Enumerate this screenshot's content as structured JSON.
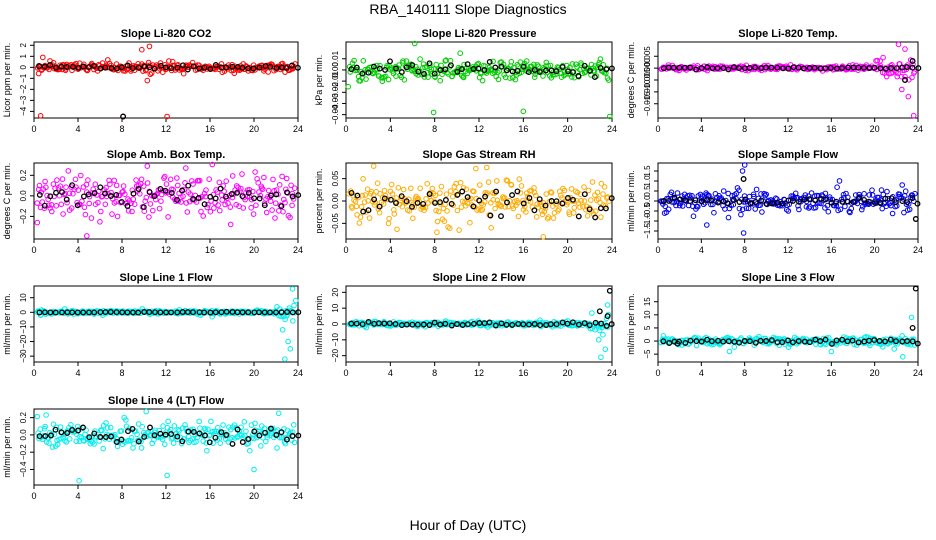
{
  "figure": {
    "title": "RBA_140111  Slope Diagnostics",
    "xlabel": "Hour of Day (UTC)"
  },
  "chart_data": [
    {
      "type": "scatter",
      "title": "Slope Li-820 CO2",
      "ylabel": "Licor ppm per min.",
      "color": "#ff0000",
      "xlim": [
        0,
        24
      ],
      "xticks": [
        0,
        4,
        8,
        12,
        16,
        20,
        24
      ],
      "ylim": [
        -4.6,
        2.3
      ],
      "yticks": [
        -4,
        -3,
        -2,
        -1,
        0,
        1,
        2
      ],
      "noise": 0.28,
      "outliers": [
        [
          0.6,
          -4.4
        ],
        [
          8.1,
          -4.7
        ],
        [
          12.1,
          -4.5
        ],
        [
          10.5,
          1.9
        ],
        [
          9.8,
          1.6
        ],
        [
          10.3,
          -1.2
        ],
        [
          0.8,
          0.9
        ]
      ],
      "black_noise": 0.15,
      "black_outliers": [
        [
          8.1,
          -4.7
        ]
      ]
    },
    {
      "type": "scatter",
      "title": "Slope Li-820 Pressure",
      "ylabel": "kPa per min.",
      "color": "#00cc00",
      "xlim": [
        0,
        24
      ],
      "xticks": [
        0,
        4,
        8,
        12,
        16,
        20,
        24
      ],
      "ylim": [
        -0.043,
        0.025
      ],
      "yticks": [
        -0.04,
        -0.03,
        -0.02,
        -0.01,
        0.0,
        0.01
      ],
      "noise": 0.0055,
      "outliers": [
        [
          6.2,
          0.024
        ],
        [
          7.9,
          -0.038
        ],
        [
          16.0,
          -0.037
        ],
        [
          23.8,
          -0.042
        ],
        [
          10.3,
          0.015
        ],
        [
          0.2,
          -0.015
        ]
      ],
      "black_noise": 0.004,
      "black_outliers": []
    },
    {
      "type": "scatter",
      "title": "Slope Li-820 Temp.",
      "ylabel": "degrees C per min.",
      "color": "#ff00ff",
      "xlim": [
        0,
        24
      ],
      "xticks": [
        0,
        4,
        8,
        12,
        16,
        20,
        24
      ],
      "ylim": [
        -0.021,
        0.011
      ],
      "yticks": [
        -0.015,
        -0.01,
        -0.005,
        0.0,
        0.005
      ],
      "noise": 0.0006,
      "outliers": [
        [
          22.2,
          0.01
        ],
        [
          22.8,
          0.008
        ],
        [
          23.6,
          -0.02
        ],
        [
          23.1,
          -0.012
        ],
        [
          22.5,
          -0.009
        ],
        [
          20.5,
          0.003
        ]
      ],
      "black_noise": 0.0003,
      "black_outliers": [
        [
          23.5,
          0.003
        ],
        [
          22.8,
          -0.005
        ]
      ]
    },
    {
      "type": "scatter",
      "title": "Slope Amb. Box Temp.",
      "ylabel": "degrees C per min.",
      "color": "#ff00ff",
      "xlim": [
        0,
        24
      ],
      "xticks": [
        0,
        4,
        8,
        12,
        16,
        20,
        24
      ],
      "ylim": [
        -0.42,
        0.32
      ],
      "yticks": [
        -0.2,
        0.0,
        0.2
      ],
      "noise": 0.12,
      "outliers": [
        [
          4.8,
          -0.39
        ],
        [
          0.3,
          -0.26
        ],
        [
          10.3,
          0.29
        ],
        [
          13.8,
          0.27
        ]
      ],
      "black_noise": 0.08,
      "black_outliers": []
    },
    {
      "type": "scatter",
      "title": "Slope Gas Stream RH",
      "ylabel": "percent per min.",
      "color": "#ffaa00",
      "xlim": [
        0,
        24
      ],
      "xticks": [
        0,
        4,
        8,
        12,
        16,
        20,
        24
      ],
      "ylim": [
        -0.085,
        0.085
      ],
      "yticks": [
        -0.05,
        0.0,
        0.05
      ],
      "noise": 0.03,
      "outliers": [
        [
          2.5,
          0.078
        ],
        [
          17.8,
          -0.08
        ],
        [
          12.7,
          0.075
        ],
        [
          8.2,
          -0.07
        ]
      ],
      "black_noise": 0.025,
      "black_outliers": []
    },
    {
      "type": "scatter",
      "title": "Slope Sample Flow",
      "ylabel": "ml/min per min.",
      "color": "#0000ee",
      "xlim": [
        0,
        24
      ],
      "xticks": [
        0,
        4,
        8,
        12,
        16,
        20,
        24
      ],
      "ylim": [
        -1.9,
        1.9
      ],
      "yticks": [
        -1.5,
        -1.0,
        -0.5,
        0.0,
        0.5,
        1.0,
        1.5
      ],
      "noise": 0.35,
      "outliers": [
        [
          7.9,
          -1.6
        ],
        [
          8.0,
          1.8
        ],
        [
          7.8,
          1.5
        ],
        [
          4.5,
          -1.2
        ],
        [
          23.8,
          -0.9
        ]
      ],
      "black_noise": 0.12,
      "black_outliers": [
        [
          7.9,
          1.1
        ],
        [
          23.8,
          -0.9
        ]
      ]
    },
    {
      "type": "scatter",
      "title": "Slope Line 1 Flow",
      "ylabel": "ml/min per min.",
      "color": "#00eeee",
      "xlim": [
        0,
        24
      ],
      "xticks": [
        0,
        4,
        8,
        12,
        16,
        20,
        24
      ],
      "ylim": [
        -34,
        18
      ],
      "yticks": [
        -30,
        -20,
        -10,
        0,
        10
      ],
      "noise": 0.8,
      "outliers": [
        [
          22.8,
          -32
        ],
        [
          23.3,
          -25
        ],
        [
          23.5,
          16
        ],
        [
          23.1,
          -20
        ],
        [
          22.6,
          -12
        ],
        [
          23.8,
          8
        ],
        [
          16.2,
          -3
        ],
        [
          0.6,
          -2
        ]
      ],
      "black_noise": 0.2,
      "black_outliers": []
    },
    {
      "type": "scatter",
      "title": "Slope Line 2 Flow",
      "ylabel": "ml/min per min.",
      "color": "#00eeee",
      "xlim": [
        0,
        24
      ],
      "xticks": [
        0,
        4,
        8,
        12,
        16,
        20,
        24
      ],
      "ylim": [
        -24,
        24
      ],
      "yticks": [
        -20,
        -10,
        0,
        10,
        20
      ],
      "noise": 1.0,
      "outliers": [
        [
          23.0,
          -21
        ],
        [
          23.4,
          -16
        ],
        [
          23.8,
          21
        ],
        [
          22.8,
          -10
        ],
        [
          23.6,
          12
        ]
      ],
      "black_noise": 0.7,
      "black_outliers": [
        [
          23.8,
          21
        ],
        [
          23.6,
          5
        ],
        [
          22.9,
          8
        ]
      ]
    },
    {
      "type": "scatter",
      "title": "Slope Line 3 Flow",
      "ylabel": "ml/min per min.",
      "color": "#00eeee",
      "xlim": [
        0,
        24
      ],
      "xticks": [
        0,
        4,
        8,
        12,
        16,
        20,
        24
      ],
      "ylim": [
        -8,
        21
      ],
      "yticks": [
        -5,
        0,
        5,
        10,
        15
      ],
      "noise": 1.0,
      "outliers": [
        [
          23.4,
          9
        ],
        [
          22.6,
          -6
        ],
        [
          0.5,
          2
        ],
        [
          6.6,
          -4
        ],
        [
          16.0,
          -4
        ],
        [
          21.8,
          -3
        ]
      ],
      "black_noise": 0.6,
      "black_outliers": [
        [
          23.8,
          20
        ],
        [
          23.5,
          5
        ],
        [
          1.8,
          -1
        ]
      ]
    },
    {
      "type": "scatter",
      "title": "Slope Line 4 (LT) Flow",
      "ylabel": "ml/min per min.",
      "color": "#00eeee",
      "xlim": [
        0,
        24
      ],
      "xticks": [
        0,
        4,
        8,
        12,
        16,
        20,
        24
      ],
      "ylim": [
        -0.58,
        0.3
      ],
      "yticks": [
        -0.4,
        -0.2,
        0.0,
        0.2
      ],
      "noise": 0.09,
      "outliers": [
        [
          4.1,
          -0.53
        ],
        [
          12.1,
          -0.47
        ],
        [
          20.0,
          -0.4
        ],
        [
          1.1,
          0.23
        ],
        [
          10.2,
          0.27
        ],
        [
          8.2,
          0.2
        ]
      ],
      "black_noise": 0.07,
      "black_outliers": []
    }
  ]
}
